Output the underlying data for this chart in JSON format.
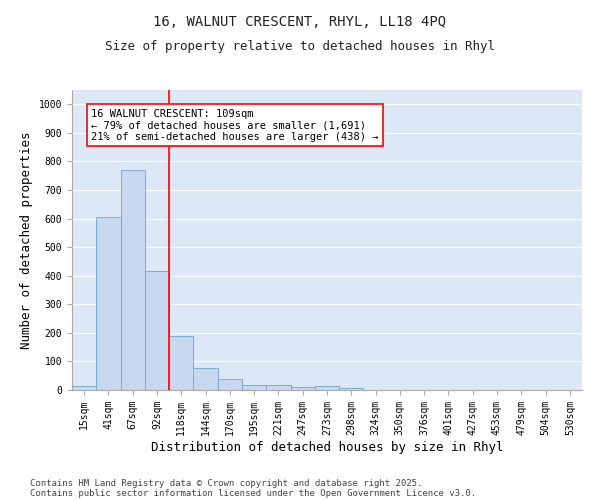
{
  "title_line1": "16, WALNUT CRESCENT, RHYL, LL18 4PQ",
  "title_line2": "Size of property relative to detached houses in Rhyl",
  "xlabel": "Distribution of detached houses by size in Rhyl",
  "ylabel": "Number of detached properties",
  "categories": [
    "15sqm",
    "41sqm",
    "67sqm",
    "92sqm",
    "118sqm",
    "144sqm",
    "170sqm",
    "195sqm",
    "221sqm",
    "247sqm",
    "273sqm",
    "298sqm",
    "324sqm",
    "350sqm",
    "376sqm",
    "401sqm",
    "427sqm",
    "453sqm",
    "479sqm",
    "504sqm",
    "530sqm"
  ],
  "values": [
    15,
    605,
    770,
    415,
    190,
    77,
    38,
    18,
    18,
    10,
    13,
    6,
    0,
    0,
    0,
    0,
    0,
    0,
    0,
    0,
    0
  ],
  "bar_color": "#c8d8ee",
  "bar_edge_color": "#7aadd4",
  "bar_width": 1.0,
  "vline_color": "red",
  "vline_pos": 3.5,
  "annotation_line1": "16 WALNUT CRESCENT: 109sqm",
  "annotation_line2": "← 79% of detached houses are smaller (1,691)",
  "annotation_line3": "21% of semi-detached houses are larger (438) →",
  "ylim": [
    0,
    1050
  ],
  "yticks": [
    0,
    100,
    200,
    300,
    400,
    500,
    600,
    700,
    800,
    900,
    1000
  ],
  "plot_bg_color": "#dce8f5",
  "fig_bg_color": "#ffffff",
  "grid_color": "#ffffff",
  "footer_line1": "Contains HM Land Registry data © Crown copyright and database right 2025.",
  "footer_line2": "Contains public sector information licensed under the Open Government Licence v3.0.",
  "title_fontsize": 10,
  "subtitle_fontsize": 9,
  "axis_label_fontsize": 9,
  "tick_fontsize": 7,
  "annotation_fontsize": 7.5,
  "footer_fontsize": 6.5
}
